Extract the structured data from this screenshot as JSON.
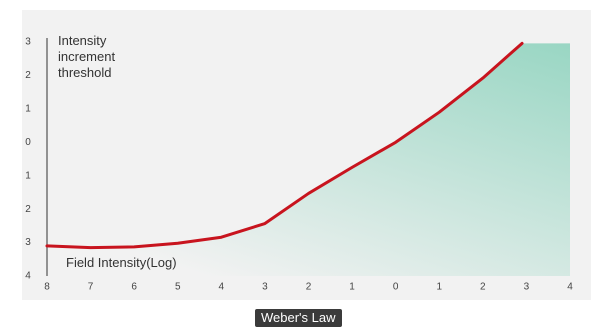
{
  "chart_data": {
    "type": "line",
    "title": "Weber's Law",
    "y_label": "Intensity increment threshold",
    "x_label": "Field Intensity(Log)",
    "x": [
      -8,
      -7,
      -6,
      -5,
      -4,
      -3,
      -2,
      -1,
      0,
      1,
      2,
      2.9
    ],
    "values": [
      -3.1,
      -3.15,
      -3.13,
      -3.02,
      -2.84,
      -2.43,
      -1.53,
      -0.75,
      0,
      0.9,
      1.92,
      2.96
    ],
    "color": "#c8141e",
    "fill_color": "#8fd3be",
    "xlim": [
      -8,
      4
    ],
    "ylim": [
      -4,
      3
    ],
    "xticks": [
      {
        "value": -8,
        "label": "8"
      },
      {
        "value": -7,
        "label": "7"
      },
      {
        "value": -6,
        "label": "6"
      },
      {
        "value": -5,
        "label": "5"
      },
      {
        "value": -4,
        "label": "4"
      },
      {
        "value": -3,
        "label": "3"
      },
      {
        "value": -2,
        "label": "2"
      },
      {
        "value": -1,
        "label": "1"
      },
      0,
      1,
      2,
      3,
      4
    ],
    "yticks": [
      3,
      2,
      1,
      0,
      {
        "value": -1,
        "label": "1"
      },
      {
        "value": -2,
        "label": "2"
      },
      {
        "value": -3,
        "label": "3"
      },
      {
        "value": -4,
        "label": "4"
      }
    ],
    "grid": false
  }
}
